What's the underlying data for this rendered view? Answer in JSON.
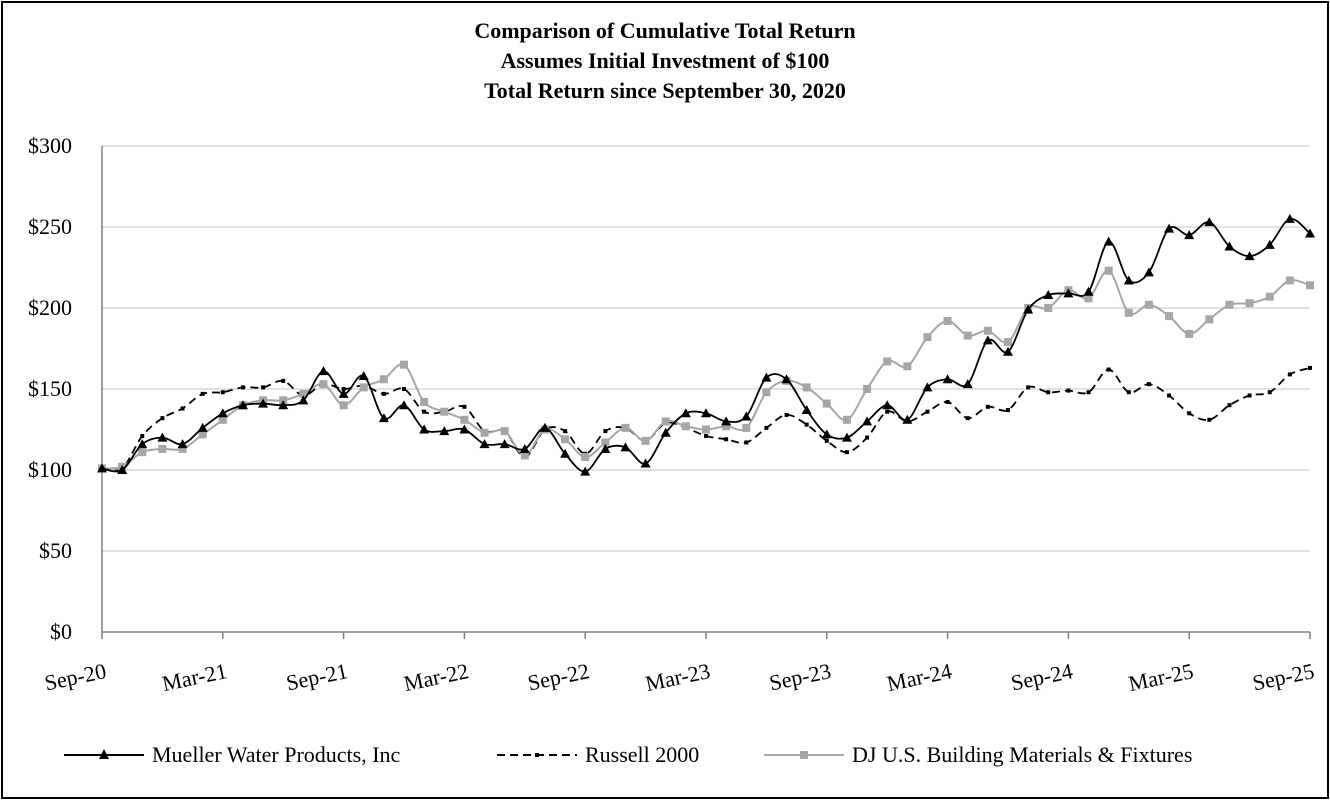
{
  "chart_data": {
    "type": "line",
    "title": "Comparison of Cumulative Total Return",
    "subtitle_lines": [
      "Assumes Initial Investment of $100",
      "Total Return since September 30, 2020"
    ],
    "xlabel": "",
    "ylabel": "",
    "ylim": [
      0,
      300
    ],
    "yticks": [
      "$0",
      "$50",
      "$100",
      "$150",
      "$200",
      "$250",
      "$300"
    ],
    "ytick_values": [
      0,
      50,
      100,
      150,
      200,
      250,
      300
    ],
    "xtick_labels": [
      "Sep-20",
      "Mar-21",
      "Sep-21",
      "Mar-22",
      "Sep-22",
      "Mar-23",
      "Sep-23",
      "Mar-24",
      "Sep-24",
      "Mar-25",
      "Sep-25"
    ],
    "xtick_months": [
      0,
      6,
      12,
      18,
      24,
      30,
      36,
      42,
      48,
      54,
      60
    ],
    "grid": true,
    "legend_position": "bottom",
    "x_months": [
      0,
      1,
      2,
      3,
      4,
      5,
      6,
      7,
      8,
      9,
      10,
      11,
      12,
      13,
      14,
      15,
      16,
      17,
      18,
      19,
      20,
      21,
      22,
      23,
      24,
      25,
      26,
      27,
      28,
      29,
      30,
      31,
      32,
      33,
      34,
      35,
      36,
      37,
      38,
      39,
      40,
      41,
      42,
      43,
      44,
      45,
      46,
      47,
      48,
      49,
      50,
      51,
      52,
      53,
      54,
      55,
      56,
      57,
      58,
      59,
      60
    ],
    "series": [
      {
        "name": "Mueller Water Products, Inc",
        "color": "#000000",
        "dash": "solid",
        "marker": "triangle",
        "values": [
          101,
          100,
          116,
          120,
          116,
          126,
          135,
          140,
          141,
          140,
          143,
          161,
          147,
          158,
          132,
          140,
          125,
          124,
          125,
          116,
          116,
          113,
          126,
          110,
          99,
          113,
          114,
          104,
          123,
          135,
          135,
          130,
          133,
          157,
          156,
          137,
          122,
          120,
          130,
          140,
          131,
          151,
          156,
          153,
          180,
          173,
          199,
          208,
          209,
          210,
          241,
          217,
          222,
          249,
          245,
          253,
          238,
          232,
          239,
          255,
          246
        ]
      },
      {
        "name": "Russell 2000",
        "color": "#000000",
        "dash": "dashed",
        "marker": "square-small",
        "values": [
          101,
          101,
          121,
          132,
          138,
          147,
          148,
          151,
          151,
          155,
          146,
          153,
          150,
          152,
          147,
          150,
          136,
          136,
          139,
          124,
          124,
          108,
          125,
          124,
          110,
          124,
          126,
          118,
          129,
          126,
          121,
          119,
          117,
          126,
          134,
          128,
          118,
          111,
          120,
          136,
          130,
          136,
          142,
          132,
          139,
          137,
          151,
          148,
          149,
          148,
          162,
          148,
          153,
          146,
          135,
          131,
          140,
          146,
          148,
          159,
          163
        ]
      },
      {
        "name": "DJ U.S. Building Materials & Fixtures",
        "color": "#a6a6a6",
        "dash": "solid",
        "marker": "square",
        "values": [
          101,
          102,
          111,
          113,
          113,
          122,
          131,
          140,
          143,
          143,
          147,
          153,
          140,
          151,
          156,
          165,
          142,
          136,
          131,
          123,
          124,
          109,
          125,
          119,
          108,
          117,
          126,
          118,
          130,
          127,
          125,
          127,
          126,
          148,
          155,
          151,
          141,
          131,
          150,
          167,
          164,
          182,
          192,
          183,
          186,
          179,
          200,
          200,
          211,
          206,
          223,
          197,
          202,
          195,
          184,
          193,
          202,
          203,
          207,
          217,
          214
        ]
      }
    ]
  }
}
